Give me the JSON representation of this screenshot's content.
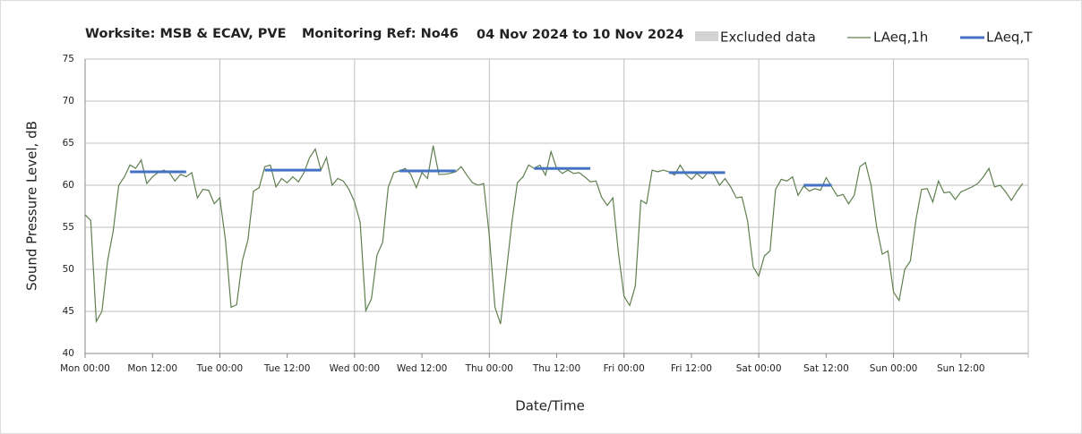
{
  "chart_data": {
    "type": "line",
    "title": "Worksite: MSB & ECAV, PVE",
    "subtitle": "Monitoring Ref: No46",
    "date_range": "04 Nov 2024 to 10 Nov 2024",
    "x_label": "Date/Time",
    "y_label": "Sound Pressure Level, dB",
    "xlim": [
      0,
      168
    ],
    "ylim": [
      40,
      75
    ],
    "yticks": [
      40,
      45,
      50,
      55,
      60,
      65,
      70,
      75
    ],
    "xticks": [
      {
        "value": 0,
        "label": "Mon 00:00"
      },
      {
        "value": 12,
        "label": "Mon 12:00"
      },
      {
        "value": 24,
        "label": "Tue 00:00"
      },
      {
        "value": 36,
        "label": "Tue 12:00"
      },
      {
        "value": 48,
        "label": "Wed 00:00"
      },
      {
        "value": 60,
        "label": "Wed 12:00"
      },
      {
        "value": 72,
        "label": "Thu 00:00"
      },
      {
        "value": 84,
        "label": "Thu 12:00"
      },
      {
        "value": 96,
        "label": "Fri 00:00"
      },
      {
        "value": 108,
        "label": "Fri 12:00"
      },
      {
        "value": 120,
        "label": "Sat 00:00"
      },
      {
        "value": 132,
        "label": "Sat 12:00"
      },
      {
        "value": 144,
        "label": "Sun 00:00"
      },
      {
        "value": 156,
        "label": "Sun 12:00"
      }
    ],
    "grid": true,
    "excluded_data": {
      "name": "Excluded data",
      "color": "#d3d3d3"
    },
    "series": [
      {
        "name": "LAeq,1h",
        "color": "#5f7f4f",
        "x": [
          0,
          1,
          2,
          3,
          4,
          5,
          6,
          7,
          8,
          9,
          10,
          11,
          12,
          13,
          14,
          15,
          16,
          17,
          18,
          19,
          20,
          21,
          22,
          23,
          24,
          25,
          26,
          27,
          28,
          29,
          30,
          31,
          32,
          33,
          34,
          35,
          36,
          37,
          38,
          39,
          40,
          41,
          42,
          43,
          44,
          45,
          46,
          47,
          48,
          49,
          50,
          51,
          52,
          53,
          54,
          55,
          56,
          57,
          58,
          59,
          60,
          61,
          62,
          63,
          64,
          65,
          66,
          67,
          68,
          69,
          70,
          71,
          72,
          73,
          74,
          75,
          76,
          77,
          78,
          79,
          80,
          81,
          82,
          83,
          84,
          85,
          86,
          87,
          88,
          89,
          90,
          91,
          92,
          93,
          94,
          95,
          96,
          97,
          98,
          99,
          100,
          101,
          102,
          103,
          104,
          105,
          106,
          107,
          108,
          109,
          110,
          111,
          112,
          113,
          114,
          115,
          116,
          117,
          118,
          119,
          120,
          121,
          122,
          123,
          124,
          125,
          126,
          127,
          128,
          129,
          130,
          131,
          132,
          133,
          134,
          135,
          136,
          137,
          138,
          139,
          140,
          141,
          142,
          143,
          144,
          145,
          146,
          147,
          148,
          149,
          150,
          151,
          152,
          153,
          154,
          155,
          156,
          157,
          158,
          159,
          160,
          161,
          162,
          163,
          164,
          165,
          166,
          167
        ],
        "values": [
          56.5,
          55.8,
          43.8,
          45,
          51,
          54.5,
          60,
          61,
          62.4,
          62,
          63,
          60.2,
          61,
          61.5,
          61.8,
          61.5,
          60.5,
          61.3,
          61,
          61.5,
          58.5,
          59.5,
          59.4,
          57.8,
          58.5,
          53.5,
          45.5,
          45.8,
          51,
          53.5,
          59.3,
          59.7,
          62.2,
          62.4,
          59.8,
          60.8,
          60.3,
          61,
          60.4,
          61.5,
          63.3,
          64.3,
          61.8,
          63.3,
          60,
          60.8,
          60.5,
          59.5,
          58,
          55.6,
          45.1,
          46.5,
          51.7,
          53.2,
          59.8,
          61.5,
          61.7,
          62,
          61.3,
          59.7,
          61.5,
          60.8,
          64.7,
          61.3,
          61.3,
          61.4,
          61.6,
          62.2,
          61.2,
          60.3,
          60,
          60.2,
          54,
          45.5,
          43.5,
          49.5,
          55.5,
          60.3,
          61,
          62.4,
          62,
          62.4,
          61.2,
          64,
          62,
          61.4,
          61.8,
          61.4,
          61.5,
          61,
          60.4,
          60.5,
          58.6,
          57.6,
          58.5,
          52,
          46.8,
          45.7,
          48,
          58.2,
          57.8,
          61.8,
          61.6,
          61.8,
          61.6,
          61.2,
          62.4,
          61.3,
          60.7,
          61.4,
          60.8,
          61.6,
          61.3,
          60,
          60.8,
          59.8,
          58.5,
          58.6,
          55.8,
          50.3,
          49.2,
          51.6,
          52.2,
          59.5,
          60.7,
          60.5,
          61,
          58.8,
          59.9,
          59.3,
          59.6,
          59.4,
          60.9,
          59.8,
          58.7,
          58.9,
          57.8,
          58.8,
          62.2,
          62.7,
          60,
          55,
          51.8,
          52.2,
          47.3,
          46.3,
          50,
          51,
          55.9,
          59.5,
          59.6,
          58,
          60.5,
          59.1,
          59.2,
          58.3,
          59.2,
          59.5,
          59.8,
          60.2,
          61,
          62,
          59.8,
          60,
          59.2,
          58.2,
          59.3,
          60.2
        ]
      },
      {
        "name": "LAeq,T",
        "color": "#4472c4",
        "x_start": [
          8,
          32,
          56,
          80,
          104,
          128
        ],
        "x_end": [
          18,
          42,
          66,
          90,
          114,
          133
        ],
        "values": [
          61.6,
          61.8,
          61.7,
          62.0,
          61.5,
          60.0
        ]
      }
    ]
  }
}
